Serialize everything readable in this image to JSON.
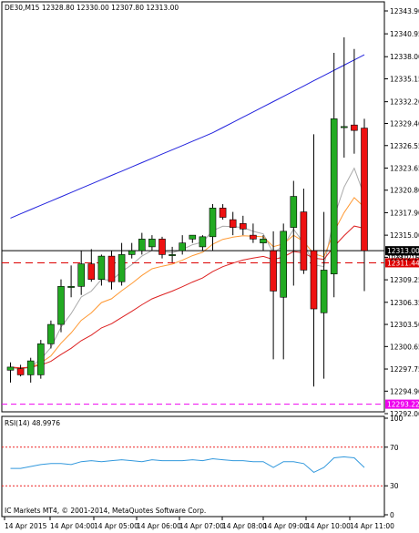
{
  "chart_data": {
    "type": "candlestick",
    "symbol_header": "DE30,M15  12328.80 12330.00 12307.80 12313.00",
    "y_ticks": [
      "12343.90",
      "12340.95",
      "12338.00",
      "12335.15",
      "12332.20",
      "12329.40",
      "12326.55",
      "12323.65",
      "12320.80",
      "12317.90",
      "12315.00",
      "12312.15",
      "12309.25",
      "12306.35",
      "12303.50",
      "12300.65",
      "12297.75",
      "12294.90",
      "12292.00"
    ],
    "ylim": [
      12292.0,
      12343.9
    ],
    "current_price": {
      "value": 12313.0,
      "label": "12313.00"
    },
    "bid_label": "12312.15",
    "ask_level": {
      "value": 12311.44,
      "label": "12311.44",
      "color": "#dd0000"
    },
    "magenta_level": {
      "value": 12293.22,
      "label": "12293.22",
      "color": "#ee00ee"
    },
    "candles": [
      {
        "o": 12297.6,
        "h": 12298.6,
        "l": 12296.0,
        "c": 12298.0
      },
      {
        "o": 12297.8,
        "h": 12298.3,
        "l": 12296.8,
        "c": 12297.0
      },
      {
        "o": 12297.0,
        "h": 12299.2,
        "l": 12296.0,
        "c": 12298.8
      },
      {
        "o": 12297.0,
        "h": 12301.5,
        "l": 12296.5,
        "c": 12301.0
      },
      {
        "o": 12301.0,
        "h": 12304.0,
        "l": 12300.4,
        "c": 12303.5
      },
      {
        "o": 12303.5,
        "h": 12309.3,
        "l": 12302.5,
        "c": 12308.4
      },
      {
        "o": 12308.4,
        "h": 12311.1,
        "l": 12307.0,
        "c": 12308.4
      },
      {
        "o": 12308.4,
        "h": 12313.0,
        "l": 12307.3,
        "c": 12311.3
      },
      {
        "o": 12311.3,
        "h": 12313.2,
        "l": 12309.0,
        "c": 12309.3
      },
      {
        "o": 12309.3,
        "h": 12312.5,
        "l": 12308.5,
        "c": 12312.3
      },
      {
        "o": 12312.3,
        "h": 12313.0,
        "l": 12308.0,
        "c": 12309.0
      },
      {
        "o": 12309.0,
        "h": 12314.0,
        "l": 12308.5,
        "c": 12312.5
      },
      {
        "o": 12312.5,
        "h": 12314.0,
        "l": 12312.0,
        "c": 12313.0
      },
      {
        "o": 12313.0,
        "h": 12315.3,
        "l": 12312.5,
        "c": 12314.5
      },
      {
        "o": 12313.5,
        "h": 12315.0,
        "l": 12313.0,
        "c": 12314.5
      },
      {
        "o": 12314.5,
        "h": 12314.8,
        "l": 12312.0,
        "c": 12312.5
      },
      {
        "o": 12312.5,
        "h": 12313.5,
        "l": 12311.5,
        "c": 12312.5
      },
      {
        "o": 12313.0,
        "h": 12315.0,
        "l": 12312.5,
        "c": 12314.0
      },
      {
        "o": 12314.5,
        "h": 12315.0,
        "l": 12314.0,
        "c": 12315.0
      },
      {
        "o": 12313.5,
        "h": 12315.0,
        "l": 12313.0,
        "c": 12314.8
      },
      {
        "o": 12314.8,
        "h": 12319.0,
        "l": 12313.0,
        "c": 12318.5
      },
      {
        "o": 12318.5,
        "h": 12319.0,
        "l": 12317.0,
        "c": 12317.3
      },
      {
        "o": 12317.0,
        "h": 12318.0,
        "l": 12315.0,
        "c": 12316.0
      },
      {
        "o": 12316.5,
        "h": 12317.5,
        "l": 12315.0,
        "c": 12315.8
      },
      {
        "o": 12315.0,
        "h": 12316.5,
        "l": 12314.0,
        "c": 12314.5
      },
      {
        "o": 12314.0,
        "h": 12315.0,
        "l": 12313.0,
        "c": 12314.5
      },
      {
        "o": 12313.0,
        "h": 12315.5,
        "l": 12299.0,
        "c": 12307.8
      },
      {
        "o": 12307.0,
        "h": 12316.5,
        "l": 12299.0,
        "c": 12315.5
      },
      {
        "o": 12316.0,
        "h": 12322.0,
        "l": 12308.5,
        "c": 12320.0
      },
      {
        "o": 12318.0,
        "h": 12321.0,
        "l": 12310.0,
        "c": 12310.5
      },
      {
        "o": 12313.0,
        "h": 12328.0,
        "l": 12295.5,
        "c": 12305.5
      },
      {
        "o": 12305.0,
        "h": 12318.0,
        "l": 12296.5,
        "c": 12310.5
      },
      {
        "o": 12310.0,
        "h": 12338.5,
        "l": 12307.0,
        "c": 12330.0
      },
      {
        "o": 12329.0,
        "h": 12340.5,
        "l": 12325.0,
        "c": 12329.0
      },
      {
        "o": 12329.2,
        "h": 12339.0,
        "l": 12325.5,
        "c": 12328.5
      },
      {
        "o": 12328.8,
        "h": 12330.0,
        "l": 12307.8,
        "c": 12313.0
      }
    ],
    "rsi": {
      "label": "RSI(14) 48.9976",
      "levels": [
        70,
        30
      ],
      "tick_labels": [
        "100",
        "70",
        "30",
        "0"
      ],
      "values": [
        48,
        48,
        50,
        52,
        53,
        53,
        52,
        55,
        56,
        55,
        56,
        57,
        56,
        55,
        57,
        56,
        56,
        56,
        57,
        56,
        58,
        57,
        56,
        56,
        55,
        55,
        49,
        55,
        55,
        53,
        44,
        49,
        59,
        60,
        59,
        49
      ]
    },
    "footer_text": "IC Markets MT4, © 2001-2014, MetaQuotes Software Corp.",
    "x_ticks": [
      "14 Apr 2015",
      "14 Apr 04:00",
      "14 Apr 05:00",
      "14 Apr 06:00",
      "14 Apr 07:00",
      "14 Apr 08:00",
      "14 Apr 09:00",
      "14 Apr 10:00",
      "14 Apr 11:00"
    ],
    "colors": {
      "bull": "#22aa22",
      "bear": "#ee1111",
      "ma_blue": "#2222dd",
      "ma_gray": "#aaaaaa",
      "ma_orange": "#ff9933",
      "ma_red": "#dd2222",
      "level": "#ee2222"
    }
  }
}
